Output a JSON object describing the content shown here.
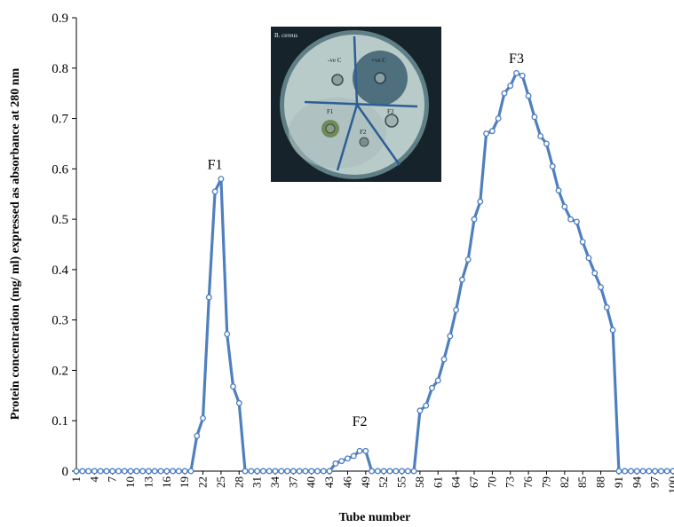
{
  "chart_data": {
    "type": "line",
    "title": "",
    "xlabel": "Tube number",
    "ylabel": "Protein concentration (mg/ ml) expressed  as absorbance at  280 nm",
    "ylim": [
      0,
      0.9
    ],
    "yticks": [
      0,
      0.1,
      0.2,
      0.3,
      0.4,
      0.5,
      0.6,
      0.7,
      0.8,
      0.9
    ],
    "ytick_labels": [
      "0",
      "0.1",
      "0.2",
      "0.3",
      "0.4",
      "0.5",
      "0.6",
      "0.7",
      "0.8",
      "0.9"
    ],
    "xticks": [
      1,
      4,
      7,
      10,
      13,
      16,
      19,
      22,
      25,
      28,
      31,
      34,
      37,
      40,
      43,
      46,
      49,
      52,
      55,
      58,
      61,
      64,
      67,
      70,
      73,
      76,
      79,
      82,
      85,
      88,
      91,
      94,
      97,
      100
    ],
    "grid": false,
    "legend": "none",
    "series_color": "#4f7fbf",
    "annotations": [
      {
        "text": "F1",
        "x": 24,
        "y": 0.6
      },
      {
        "text": "F2",
        "x": 48,
        "y": 0.09
      },
      {
        "text": "F3",
        "x": 74,
        "y": 0.81
      }
    ],
    "series": [
      {
        "x": [
          1,
          2,
          3,
          4,
          5,
          6,
          7,
          8,
          9,
          10,
          11,
          12,
          13,
          14,
          15,
          16,
          17,
          18,
          19,
          20,
          21,
          22,
          23,
          24,
          25,
          26,
          27,
          28,
          29,
          30,
          31,
          32,
          33,
          34,
          35,
          36,
          37,
          38,
          39,
          40,
          41,
          42,
          43,
          44,
          45,
          46,
          47,
          48,
          49,
          50,
          51,
          52,
          53,
          54,
          55,
          56,
          57,
          58,
          59,
          60,
          61,
          62,
          63,
          64,
          65,
          66,
          67,
          68,
          69,
          70,
          71,
          72,
          73,
          74,
          75,
          76,
          77,
          78,
          79,
          80,
          81,
          82,
          83,
          84,
          85,
          86,
          87,
          88,
          89,
          90,
          91,
          92,
          93,
          94,
          95,
          96,
          97,
          98,
          99,
          100
        ],
        "values": [
          0,
          0,
          0,
          0,
          0,
          0,
          0,
          0,
          0,
          0,
          0,
          0,
          0,
          0,
          0,
          0,
          0,
          0,
          0,
          0,
          0.07,
          0.105,
          0.345,
          0.555,
          0.58,
          0.272,
          0.168,
          0.135,
          0,
          0,
          0,
          0,
          0,
          0,
          0,
          0,
          0,
          0,
          0,
          0,
          0,
          0,
          0,
          0.015,
          0.02,
          0.025,
          0.03,
          0.04,
          0.04,
          0,
          0,
          0,
          0,
          0,
          0,
          0,
          0,
          0.12,
          0.13,
          0.165,
          0.18,
          0.222,
          0.268,
          0.32,
          0.38,
          0.42,
          0.5,
          0.535,
          0.67,
          0.675,
          0.7,
          0.75,
          0.765,
          0.79,
          0.785,
          0.745,
          0.703,
          0.665,
          0.65,
          0.605,
          0.557,
          0.525,
          0.5,
          0.495,
          0.455,
          0.423,
          0.393,
          0.365,
          0.325,
          0.28,
          0,
          0,
          0,
          0,
          0,
          0,
          0,
          0,
          0,
          0
        ]
      }
    ]
  },
  "inset_image": {
    "label": "B. cereus",
    "plate_labels": [
      "-ve C",
      "+ve C",
      "F1",
      "F2",
      "F3"
    ]
  }
}
